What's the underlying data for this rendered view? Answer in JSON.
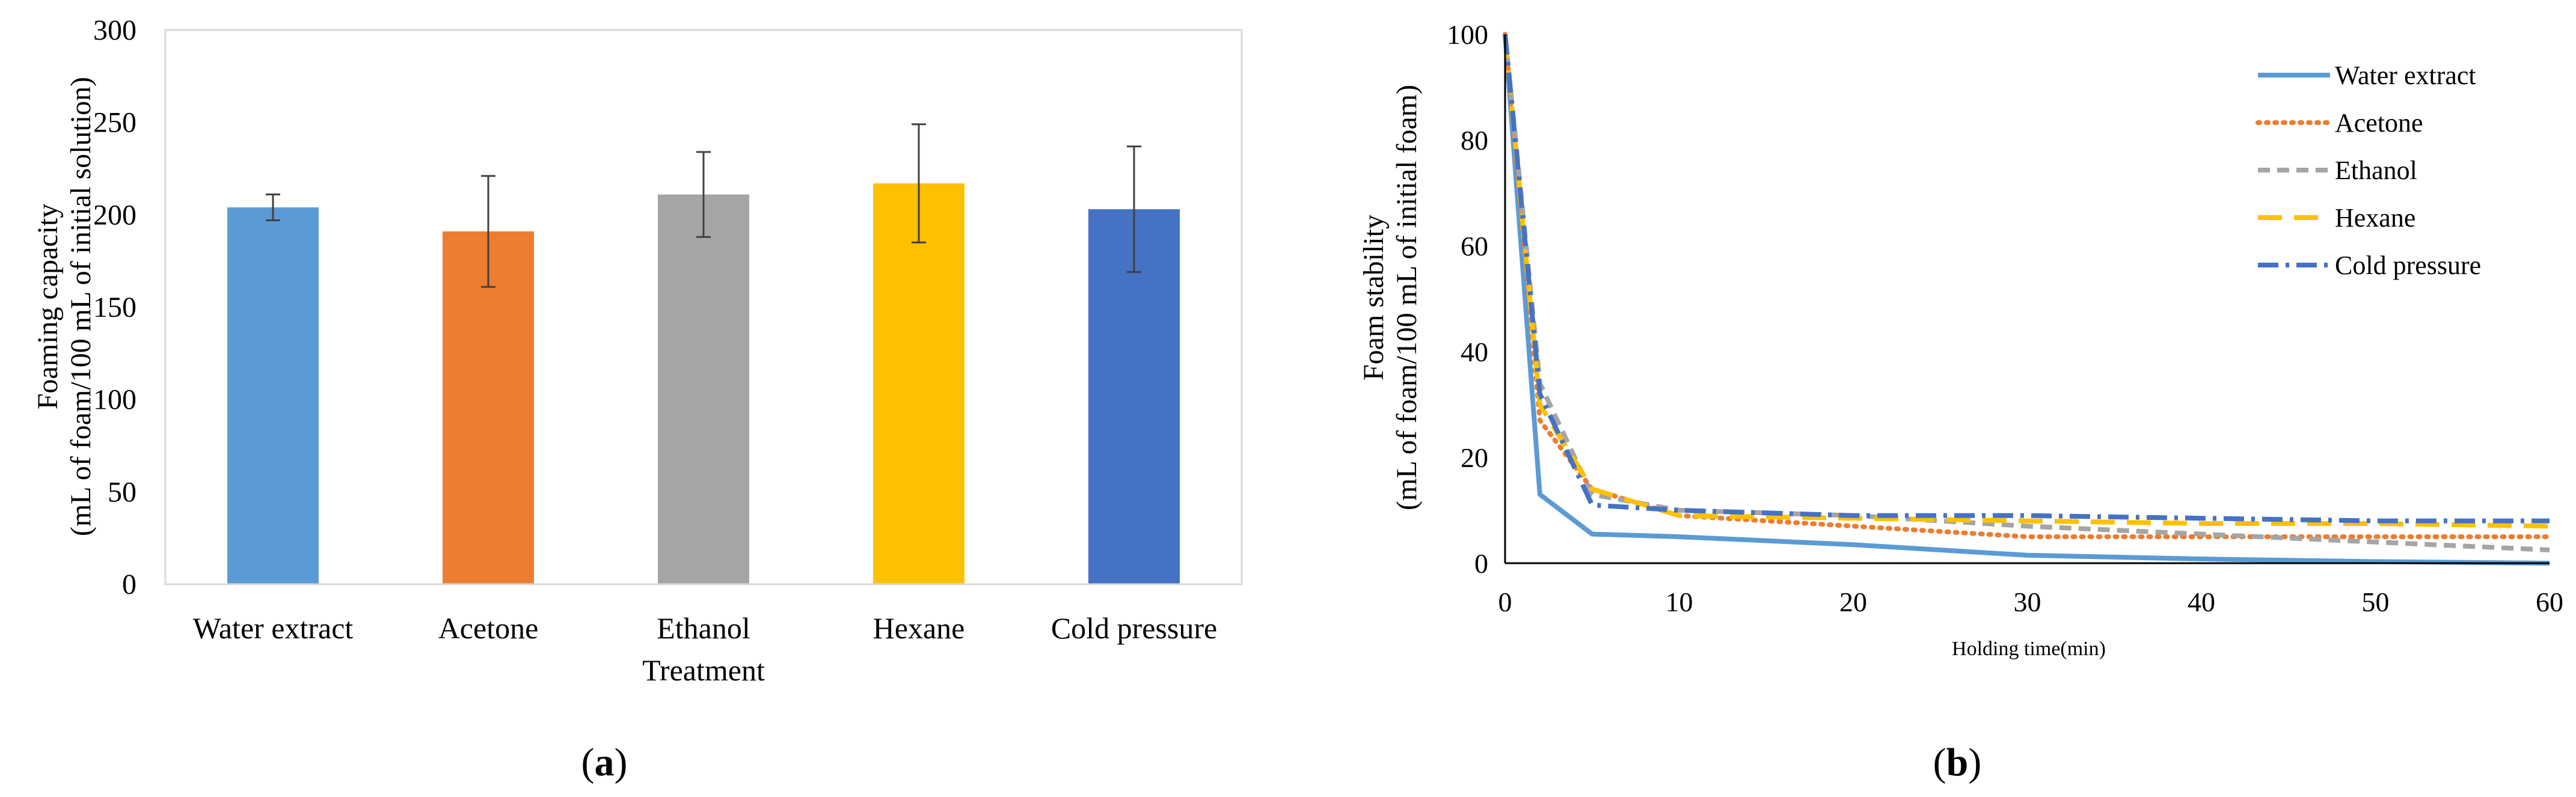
{
  "chart_data": [
    {
      "type": "bar",
      "panel_label": "a",
      "xlabel": "Treatment",
      "ylabel_line1": "Foaming capacity",
      "ylabel_line2": "(mL of foam/100 mL of initial solution)",
      "ylim": [
        0,
        300
      ],
      "yticks": [
        0,
        50,
        100,
        150,
        200,
        250,
        300
      ],
      "grid": false,
      "categories": [
        "Water extract",
        "Acetone",
        "Ethanol",
        "Hexane",
        "Cold pressure"
      ],
      "values": [
        204,
        191,
        211,
        217,
        203
      ],
      "error": [
        7,
        30,
        23,
        32,
        34
      ],
      "colors": [
        "#5B9BD5",
        "#ED7D31",
        "#A5A5A5",
        "#FFC000",
        "#4472C4"
      ]
    },
    {
      "type": "line",
      "panel_label": "b",
      "xlabel": "Holding time(min)",
      "ylabel_line1": "Foam stability",
      "ylabel_line2": "(mL of foam/100 mL of initial foam)",
      "xlim": [
        0,
        60
      ],
      "ylim": [
        0,
        100
      ],
      "xticks": [
        0,
        10,
        20,
        30,
        40,
        50,
        60
      ],
      "yticks": [
        0,
        20,
        40,
        60,
        80,
        100
      ],
      "grid": false,
      "legend_position": "top-right",
      "series": [
        {
          "name": "Water extract",
          "color": "#5B9BD5",
          "dash": "solid",
          "x": [
            0,
            2,
            5,
            10,
            20,
            30,
            40,
            50,
            60
          ],
          "y": [
            100,
            13,
            5.5,
            5,
            3.5,
            1.5,
            0.8,
            0.3,
            0
          ]
        },
        {
          "name": "Acetone",
          "color": "#ED7D31",
          "dash": "dotted",
          "x": [
            0,
            2,
            5,
            10,
            20,
            30,
            40,
            50,
            60
          ],
          "y": [
            100,
            27,
            14,
            9,
            7,
            5,
            5,
            5,
            5
          ]
        },
        {
          "name": "Ethanol",
          "color": "#A5A5A5",
          "dash": "dashed",
          "x": [
            0,
            2,
            5,
            10,
            20,
            30,
            40,
            50,
            60
          ],
          "y": [
            100,
            34,
            13,
            10,
            9,
            7,
            5.5,
            4,
            2.5
          ]
        },
        {
          "name": "Hexane",
          "color": "#FFC000",
          "dash": "longdash",
          "x": [
            0,
            2,
            5,
            10,
            20,
            30,
            40,
            50,
            60
          ],
          "y": [
            100,
            30,
            14,
            9,
            8.5,
            8,
            7.5,
            7.5,
            7
          ]
        },
        {
          "name": "Cold pressure",
          "color": "#4472C4",
          "dash": "dashdot",
          "x": [
            0,
            2,
            5,
            10,
            20,
            30,
            40,
            50,
            60
          ],
          "y": [
            100,
            32,
            11,
            10,
            9,
            9,
            8.5,
            8,
            8
          ]
        }
      ]
    }
  ]
}
